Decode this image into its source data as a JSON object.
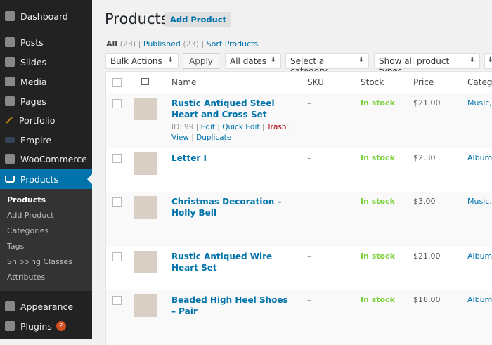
{
  "sidebar": {
    "items": [
      {
        "label": "Dashboard",
        "icon": "dashboard-icon"
      },
      {
        "label": "Posts",
        "icon": "pin-icon"
      },
      {
        "label": "Slides",
        "icon": "slides-icon"
      },
      {
        "label": "Media",
        "icon": "media-icon"
      },
      {
        "label": "Pages",
        "icon": "pages-icon"
      },
      {
        "label": "Portfolio",
        "icon": "portfolio-icon"
      },
      {
        "label": "Empire",
        "icon": "empire-icon"
      },
      {
        "label": "WooCommerce",
        "icon": "woocommerce-icon"
      },
      {
        "label": "Products",
        "icon": "cart-icon"
      }
    ],
    "submenu": [
      "Products",
      "Add Product",
      "Categories",
      "Tags",
      "Shipping Classes",
      "Attributes"
    ],
    "bottom": [
      {
        "label": "Appearance",
        "icon": "brush-icon"
      },
      {
        "label": "Plugins",
        "icon": "plugin-icon",
        "badge": "2"
      }
    ],
    "accent": "#0073aa"
  },
  "page": {
    "title": "Products",
    "add_label": "Add Product"
  },
  "filters": {
    "all": "All",
    "all_count": "(23)",
    "published": "Published",
    "published_count": "(23)",
    "sort": "Sort Products",
    "sep": "|",
    "bulk": "Bulk Actions",
    "apply": "Apply",
    "dates": "All dates",
    "category": "Select a category",
    "types": "Show all product types"
  },
  "table": {
    "headers": {
      "name": "Name",
      "sku": "SKU",
      "stock": "Stock",
      "price": "Price",
      "categories": "Catego"
    },
    "rows": [
      {
        "name": "Rustic Antiqued Steel Heart and Cross Set",
        "sku": "–",
        "stock": "In stock",
        "price": "$21.00",
        "cat": "Music, S",
        "id": "ID: 99",
        "edit": "Edit",
        "quick": "Quick Edit",
        "trash": "Trash",
        "view": "View",
        "dup": "Duplicate"
      },
      {
        "name": "Letter I",
        "sku": "–",
        "stock": "In stock",
        "price": "$2.30",
        "cat": "Albums"
      },
      {
        "name": "Christmas Decoration – Holly Bell",
        "sku": "–",
        "stock": "In stock",
        "price": "$3.00",
        "cat": "Music, S"
      },
      {
        "name": "Rustic Antiqued Wire Heart Set",
        "sku": "–",
        "stock": "In stock",
        "price": "$21.00",
        "cat": "Albums"
      },
      {
        "name": "Beaded High Heel Shoes – Pair",
        "sku": "–",
        "stock": "In stock",
        "price": "$18.00",
        "cat": "Albums"
      }
    ]
  }
}
